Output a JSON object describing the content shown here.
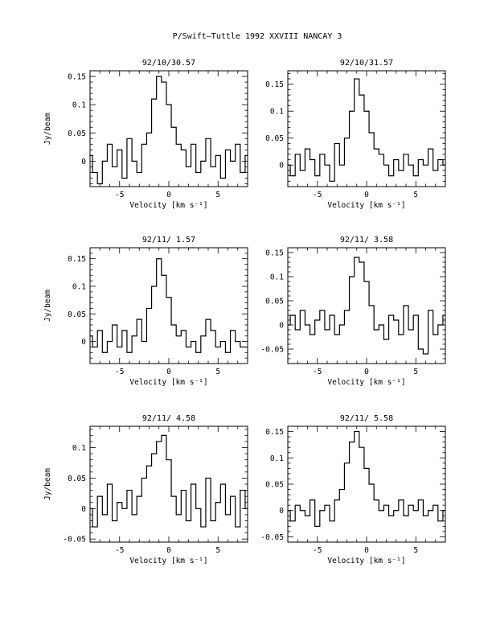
{
  "figure_title": "P/Swift–Tuttle 1992 XXVIII   NANCAY     3",
  "chart_data": [
    {
      "type": "line",
      "title": "92/10/30.57",
      "xlabel": "Velocity [km s⁻¹]",
      "ylabel": "Jy/beam",
      "xlim": [
        -8,
        8
      ],
      "ylim": [
        -0.045,
        0.16
      ],
      "xticks": [
        -5,
        0,
        5
      ],
      "yticks": [
        0,
        0.05,
        0.1,
        0.15
      ],
      "ytick_labels": [
        "0",
        "0.05",
        "0.1",
        "0.15"
      ],
      "x": [
        -8,
        -7.5,
        -7,
        -6.5,
        -6,
        -5.5,
        -5,
        -4.5,
        -4,
        -3.5,
        -3,
        -2.5,
        -2,
        -1.5,
        -1,
        -0.5,
        0,
        0.5,
        1,
        1.5,
        2,
        2.5,
        3,
        3.5,
        4,
        4.5,
        5,
        5.5,
        6,
        6.5,
        7,
        7.5,
        8
      ],
      "values": [
        0.01,
        -0.02,
        -0.04,
        0.0,
        0.03,
        -0.01,
        0.02,
        -0.03,
        0.04,
        0.0,
        -0.02,
        0.03,
        0.05,
        0.11,
        0.15,
        0.14,
        0.1,
        0.06,
        0.03,
        0.02,
        -0.01,
        0.03,
        -0.02,
        0.0,
        0.04,
        -0.01,
        0.01,
        -0.03,
        0.02,
        0.0,
        0.03,
        -0.02,
        0.01
      ]
    },
    {
      "type": "line",
      "title": "92/10/31.57",
      "xlabel": "Velocity [km s⁻¹]",
      "ylabel": "",
      "xlim": [
        -8,
        8
      ],
      "ylim": [
        -0.04,
        0.175
      ],
      "xticks": [
        -5,
        0,
        5
      ],
      "yticks": [
        0,
        0.05,
        0.1,
        0.15
      ],
      "ytick_labels": [
        "0",
        "0.05",
        "0.1",
        "0.15"
      ],
      "x": [
        -8,
        -7.5,
        -7,
        -6.5,
        -6,
        -5.5,
        -5,
        -4.5,
        -4,
        -3.5,
        -3,
        -2.5,
        -2,
        -1.5,
        -1,
        -0.5,
        0,
        0.5,
        1,
        1.5,
        2,
        2.5,
        3,
        3.5,
        4,
        4.5,
        5,
        5.5,
        6,
        6.5,
        7,
        7.5,
        8
      ],
      "values": [
        0.0,
        -0.02,
        0.02,
        -0.01,
        0.03,
        0.01,
        -0.02,
        0.02,
        0.0,
        -0.03,
        0.04,
        0.0,
        0.05,
        0.1,
        0.16,
        0.13,
        0.1,
        0.06,
        0.03,
        0.02,
        0.0,
        -0.02,
        0.01,
        -0.01,
        0.02,
        0.0,
        -0.02,
        0.01,
        0.0,
        0.03,
        -0.01,
        0.01,
        0.0
      ]
    },
    {
      "type": "line",
      "title": "92/11/ 1.57",
      "xlabel": "Velocity [km s⁻¹]",
      "ylabel": "Jy/beam",
      "xlim": [
        -8,
        8
      ],
      "ylim": [
        -0.04,
        0.17
      ],
      "xticks": [
        -5,
        0,
        5
      ],
      "yticks": [
        0,
        0.05,
        0.1,
        0.15
      ],
      "ytick_labels": [
        "0",
        "0.05",
        "0.1",
        "0.15"
      ],
      "x": [
        -8,
        -7.5,
        -7,
        -6.5,
        -6,
        -5.5,
        -5,
        -4.5,
        -4,
        -3.5,
        -3,
        -2.5,
        -2,
        -1.5,
        -1,
        -0.5,
        0,
        0.5,
        1,
        1.5,
        2,
        2.5,
        3,
        3.5,
        4,
        4.5,
        5,
        5.5,
        6,
        6.5,
        7,
        7.5,
        8
      ],
      "values": [
        0.01,
        -0.01,
        0.02,
        -0.02,
        0.0,
        0.03,
        -0.01,
        0.02,
        -0.02,
        0.01,
        0.04,
        0.0,
        0.06,
        0.1,
        0.15,
        0.12,
        0.08,
        0.03,
        0.01,
        0.02,
        -0.01,
        0.0,
        -0.02,
        0.01,
        0.04,
        0.02,
        -0.01,
        0.0,
        -0.02,
        0.02,
        0.0,
        -0.01,
        -0.01
      ]
    },
    {
      "type": "line",
      "title": "92/11/ 3.58",
      "xlabel": "Velocity [km s⁻¹]",
      "ylabel": "",
      "xlim": [
        -8,
        8
      ],
      "ylim": [
        -0.08,
        0.16
      ],
      "xticks": [
        -5,
        0,
        5
      ],
      "yticks": [
        -0.05,
        0,
        0.05,
        0.1,
        0.15
      ],
      "ytick_labels": [
        "-0.05",
        "0",
        "0.05",
        "0.1",
        "0.15"
      ],
      "x": [
        -8,
        -7.5,
        -7,
        -6.5,
        -6,
        -5.5,
        -5,
        -4.5,
        -4,
        -3.5,
        -3,
        -2.5,
        -2,
        -1.5,
        -1,
        -0.5,
        0,
        0.5,
        1,
        1.5,
        2,
        2.5,
        3,
        3.5,
        4,
        4.5,
        5,
        5.5,
        6,
        6.5,
        7,
        7.5,
        8
      ],
      "values": [
        0.0,
        0.02,
        -0.01,
        0.03,
        0.0,
        -0.02,
        0.01,
        0.03,
        -0.01,
        0.02,
        -0.02,
        0.0,
        0.03,
        0.1,
        0.14,
        0.13,
        0.09,
        0.04,
        -0.01,
        0.0,
        -0.03,
        0.02,
        0.01,
        -0.02,
        0.04,
        -0.01,
        0.02,
        -0.05,
        -0.06,
        0.03,
        -0.02,
        0.0,
        0.02
      ]
    },
    {
      "type": "line",
      "title": "92/11/ 4.58",
      "xlabel": "Velocity [km s⁻¹]",
      "ylabel": "Jy/beam",
      "xlim": [
        -8,
        8
      ],
      "ylim": [
        -0.055,
        0.135
      ],
      "xticks": [
        -5,
        0,
        5
      ],
      "yticks": [
        -0.05,
        0,
        0.05,
        0.1
      ],
      "ytick_labels": [
        "-0.05",
        "0",
        "0.05",
        "0.1"
      ],
      "x": [
        -8,
        -7.5,
        -7,
        -6.5,
        -6,
        -5.5,
        -5,
        -4.5,
        -4,
        -3.5,
        -3,
        -2.5,
        -2,
        -1.5,
        -1,
        -0.5,
        0,
        0.5,
        1,
        1.5,
        2,
        2.5,
        3,
        3.5,
        4,
        4.5,
        5,
        5.5,
        6,
        6.5,
        7,
        7.5,
        8
      ],
      "values": [
        0.0,
        -0.03,
        0.02,
        -0.01,
        0.04,
        -0.02,
        0.01,
        0.0,
        0.03,
        -0.01,
        0.02,
        0.05,
        0.07,
        0.09,
        0.11,
        0.12,
        0.08,
        0.02,
        -0.01,
        0.03,
        -0.02,
        0.04,
        0.0,
        -0.03,
        0.05,
        -0.02,
        0.01,
        0.04,
        -0.01,
        0.02,
        -0.03,
        0.03,
        0.0
      ]
    },
    {
      "type": "line",
      "title": "92/11/ 5.58",
      "xlabel": "Velocity [km s⁻¹]",
      "ylabel": "",
      "xlim": [
        -8,
        8
      ],
      "ylim": [
        -0.06,
        0.16
      ],
      "xticks": [
        -5,
        0,
        5
      ],
      "yticks": [
        -0.05,
        0,
        0.05,
        0.1,
        0.15
      ],
      "ytick_labels": [
        "-0.05",
        "0",
        "0.05",
        "0.1",
        "0.15"
      ],
      "x": [
        -8,
        -7.5,
        -7,
        -6.5,
        -6,
        -5.5,
        -5,
        -4.5,
        -4,
        -3.5,
        -3,
        -2.5,
        -2,
        -1.5,
        -1,
        -0.5,
        0,
        0.5,
        1,
        1.5,
        2,
        2.5,
        3,
        3.5,
        4,
        4.5,
        5,
        5.5,
        6,
        6.5,
        7,
        7.5,
        8
      ],
      "values": [
        0.0,
        -0.02,
        0.01,
        0.0,
        -0.01,
        0.02,
        -0.03,
        0.0,
        0.01,
        -0.02,
        0.02,
        0.04,
        0.09,
        0.13,
        0.15,
        0.12,
        0.08,
        0.05,
        0.02,
        0.0,
        0.01,
        -0.01,
        0.0,
        0.02,
        -0.01,
        0.01,
        0.0,
        0.02,
        -0.01,
        0.0,
        0.01,
        -0.02,
        0.0
      ]
    }
  ]
}
